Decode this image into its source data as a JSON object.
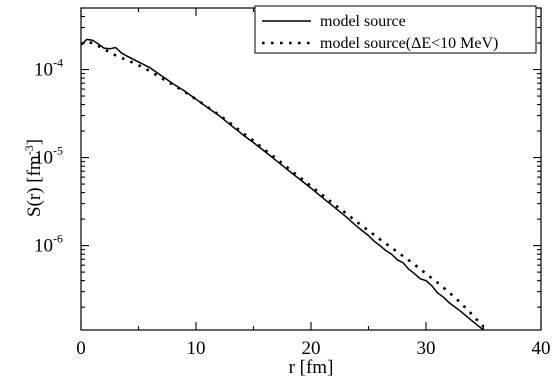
{
  "chart_data": {
    "type": "line",
    "xlabel": "r [fm]",
    "ylabel": "S(r) [fm",
    "ylabel_sup": "-3",
    "ylabel_end": "]",
    "xlim": [
      0,
      40
    ],
    "ylim": [
      1.1e-07,
      0.0005
    ],
    "yscale": "log",
    "grid": false,
    "legend_position": "top-right",
    "x_ticks": [
      0,
      10,
      20,
      30,
      40
    ],
    "x_tick_labels": [
      "0",
      "10",
      "20",
      "30",
      "40"
    ],
    "y_ticks": [
      0.0001,
      1e-05,
      1e-06
    ],
    "y_tick_labels": [
      {
        "base": "10",
        "exp": "-4"
      },
      {
        "base": "10",
        "exp": "-5"
      },
      {
        "base": "10",
        "exp": "-6"
      }
    ],
    "series": [
      {
        "name": "model source",
        "style": "solid",
        "color": "#000000",
        "x": [
          0,
          0.5,
          1,
          1.5,
          2,
          2.5,
          3,
          3.5,
          4,
          5,
          6,
          7,
          8,
          9,
          10,
          11,
          12,
          13,
          14,
          15,
          16,
          17,
          18,
          19,
          20,
          21,
          22,
          23,
          24,
          25,
          25.5,
          26,
          26.5,
          27,
          27.5,
          28,
          28.5,
          29,
          29.5,
          30,
          30.5,
          31,
          31.5,
          32,
          33,
          34,
          35
        ],
        "y": [
          0.00019,
          0.00022,
          0.000215,
          0.000195,
          0.000175,
          0.000172,
          0.000178,
          0.000155,
          0.000142,
          0.000122,
          0.000105,
          8.5e-05,
          6.9e-05,
          5.7e-05,
          4.6e-05,
          3.7e-05,
          3e-05,
          2.35e-05,
          1.85e-05,
          1.48e-05,
          1.17e-05,
          9.2e-06,
          7.2e-06,
          5.7e-06,
          4.5e-06,
          3.5e-06,
          2.75e-06,
          2.15e-06,
          1.65e-06,
          1.3e-06,
          1.12e-06,
          1e-06,
          8.8e-07,
          8e-07,
          6.9e-07,
          6.4e-07,
          5.4e-07,
          4.8e-07,
          4.2e-07,
          4e-07,
          3.5e-07,
          2.9e-07,
          2.6e-07,
          2.25e-07,
          1.8e-07,
          1.4e-07,
          1.1e-07
        ]
      },
      {
        "name": "model source(ΔE<10 MeV)",
        "style": "dotted",
        "color": "#000000",
        "x": [
          0,
          0.5,
          1,
          1.5,
          2,
          3,
          4,
          5,
          6,
          7,
          8,
          9,
          10,
          11,
          12,
          13,
          14,
          15,
          16,
          17,
          18,
          19,
          20,
          21,
          22,
          23,
          24,
          25,
          26,
          27,
          28,
          29,
          30,
          31,
          32,
          33,
          34,
          35
        ],
        "y": [
          0.000195,
          0.000205,
          0.0002,
          0.000185,
          0.00017,
          0.000145,
          0.000128,
          0.000112,
          9.6e-05,
          8e-05,
          6.7e-05,
          5.6e-05,
          4.6e-05,
          3.75e-05,
          3.05e-05,
          2.45e-05,
          1.93e-05,
          1.55e-05,
          1.22e-05,
          9.7e-06,
          7.6e-06,
          6e-06,
          4.75e-06,
          3.75e-06,
          2.95e-06,
          2.35e-06,
          1.85e-06,
          1.48e-06,
          1.18e-06,
          9.5e-07,
          7.6e-07,
          6.1e-07,
          4.8e-07,
          3.8e-07,
          2.95e-07,
          2.25e-07,
          1.65e-07,
          1.2e-07
        ]
      }
    ]
  }
}
